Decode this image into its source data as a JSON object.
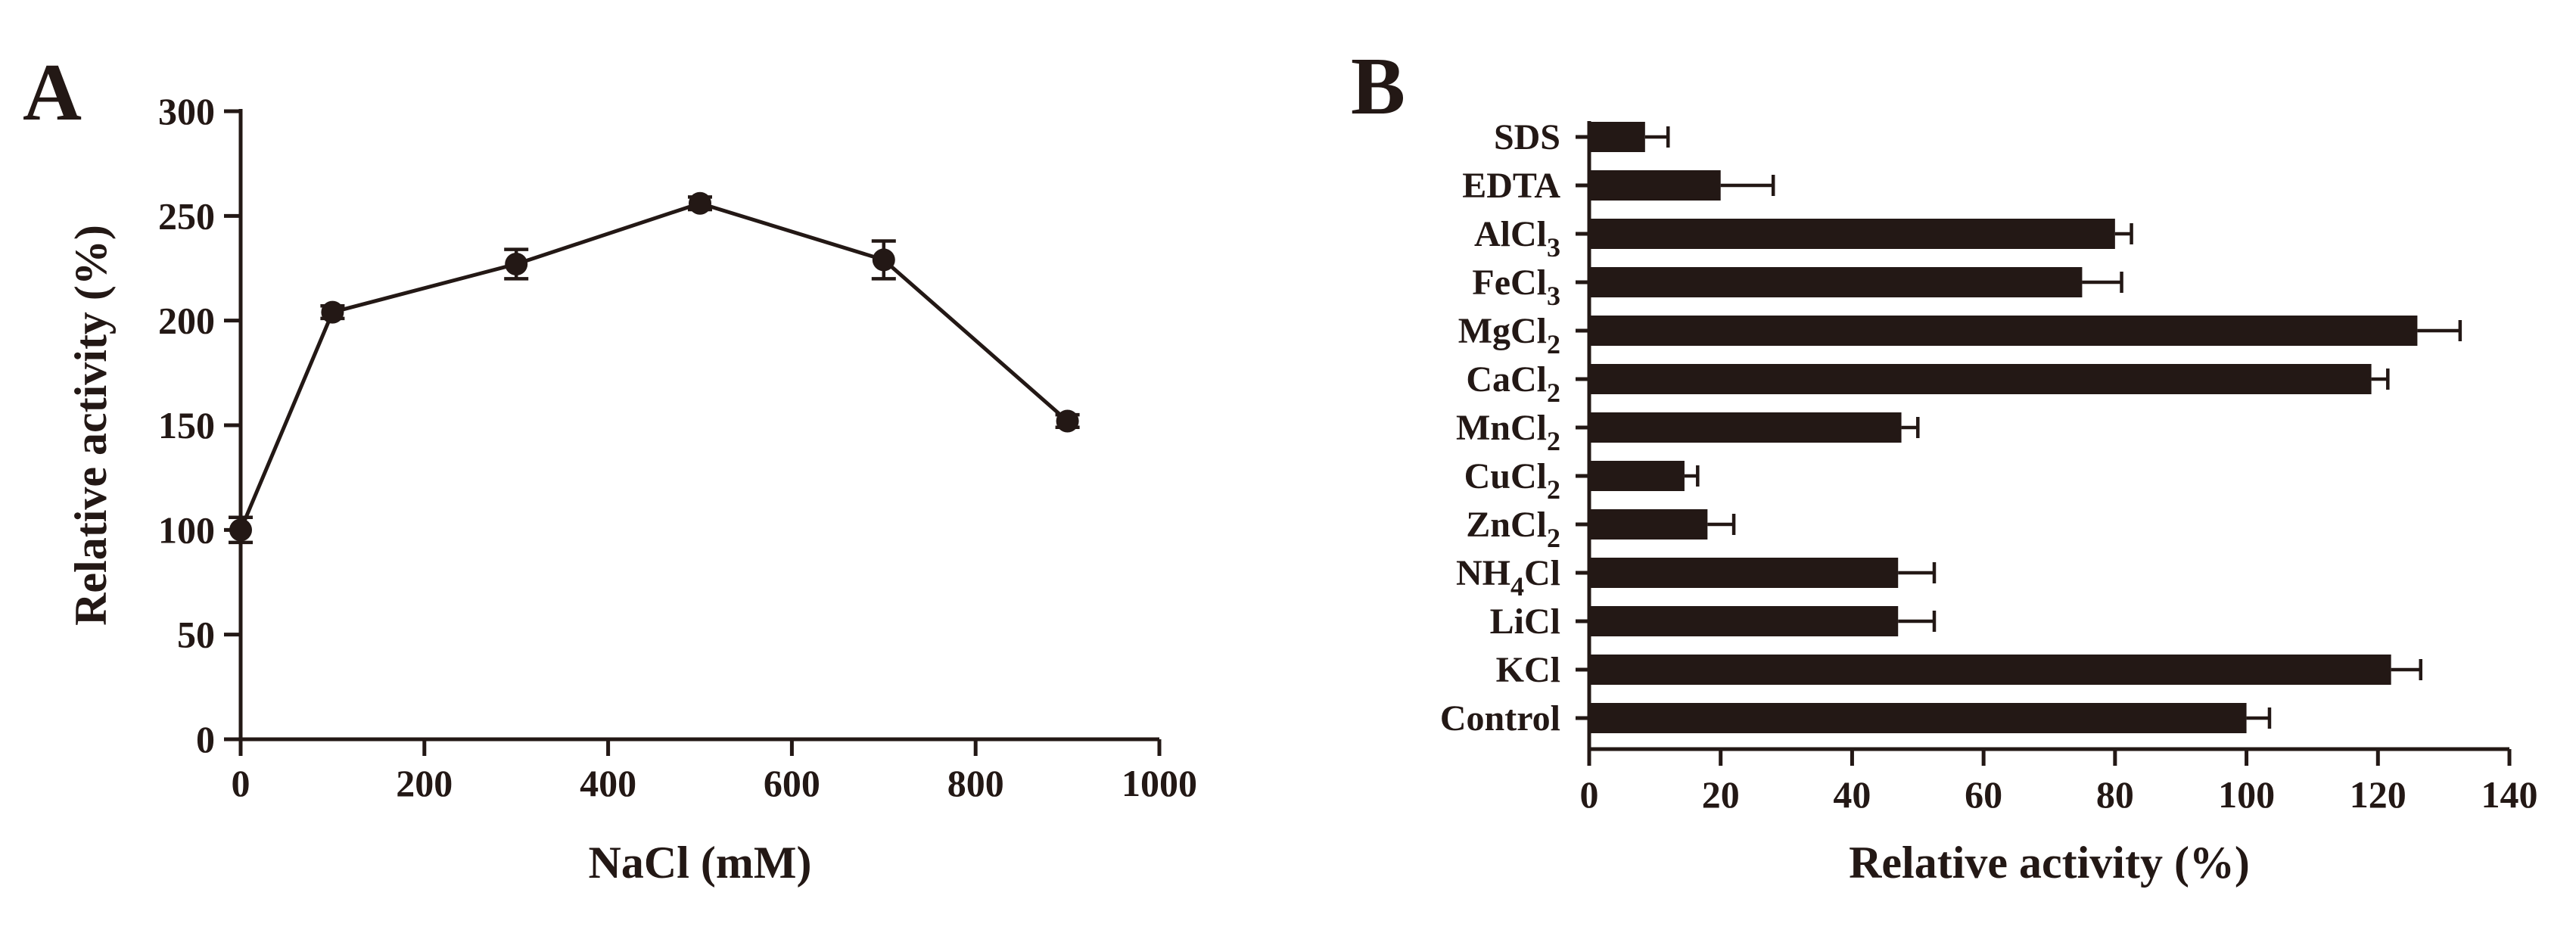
{
  "chart_data": [
    {
      "panel": "A",
      "type": "line",
      "title": "",
      "xlabel": "NaCl (mM)",
      "ylabel": "Relative activity (%)",
      "xlim": [
        0,
        1000
      ],
      "ylim": [
        0,
        300
      ],
      "xticks": [
        "0",
        "200",
        "400",
        "600",
        "800",
        "1000"
      ],
      "yticks": [
        "0",
        "50",
        "100",
        "150",
        "200",
        "250",
        "300"
      ],
      "series": [
        {
          "name": "Relative activity",
          "x": [
            0,
            100,
            300,
            500,
            700,
            900
          ],
          "y": [
            100,
            204,
            227,
            256,
            229,
            152
          ],
          "err": [
            6,
            3,
            7,
            3,
            9,
            3
          ]
        }
      ]
    },
    {
      "panel": "B",
      "type": "bar",
      "orientation": "horizontal",
      "title": "",
      "xlabel": "Relative activity (%)",
      "ylabel": "",
      "xlim": [
        0,
        140
      ],
      "xticks": [
        "0",
        "20",
        "40",
        "60",
        "80",
        "100",
        "120",
        "140"
      ],
      "categories": [
        {
          "label": "SDS",
          "sub": ""
        },
        {
          "label": "EDTA",
          "sub": ""
        },
        {
          "label": "AlCl",
          "sub": "3"
        },
        {
          "label": "FeCl",
          "sub": "3"
        },
        {
          "label": "MgCl",
          "sub": "2"
        },
        {
          "label": "CaCl",
          "sub": "2"
        },
        {
          "label": "MnCl",
          "sub": "2"
        },
        {
          "label": "CuCl",
          "sub": "2"
        },
        {
          "label": "ZnCl",
          "sub": "2"
        },
        {
          "label": "NH",
          "sub": "4",
          "suffix": "Cl"
        },
        {
          "label": "LiCl",
          "sub": ""
        },
        {
          "label": "KCl",
          "sub": ""
        },
        {
          "label": "Control",
          "sub": ""
        }
      ],
      "values": [
        8.5,
        20,
        80,
        75,
        126,
        119,
        47.5,
        14.5,
        18,
        47,
        47,
        122,
        100
      ],
      "err": [
        3.5,
        8,
        2.5,
        6,
        6.5,
        2.5,
        2.5,
        2,
        4,
        5.5,
        5.5,
        4.5,
        3.5
      ]
    }
  ]
}
